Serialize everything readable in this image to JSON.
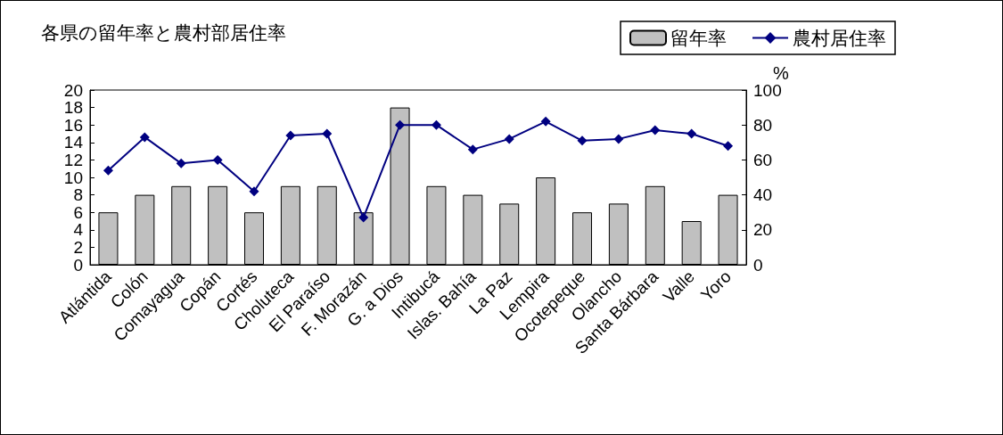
{
  "chart_data": {
    "type": "bar",
    "title": "各県の留年率と農村部居住率",
    "y2label": "%",
    "categories": [
      "Atlántida",
      "Colón",
      "Comayagua",
      "Copán",
      "Cortés",
      "Choluteca",
      "El Paraíso",
      "F. Morazán",
      "G. a Dios",
      "Intibucá",
      "Islas. Bahía",
      "La Paz",
      "Lempira",
      "Ocotepeque",
      "Olancho",
      "Santa Bárbara",
      "Valle",
      "Yoro"
    ],
    "series": [
      {
        "name": "留年率",
        "color": "#c0c0c0",
        "values": [
          6,
          8,
          9,
          9,
          6,
          9,
          9,
          6,
          18,
          9,
          8,
          7,
          10,
          6,
          7,
          9,
          5,
          8
        ]
      },
      {
        "name": "農村居住率",
        "type": "line",
        "axis": "y2",
        "color": "#000080",
        "marker": "diamond",
        "line_style": "solid",
        "values": [
          54,
          73,
          58,
          60,
          42,
          74,
          75,
          27,
          80,
          80,
          66,
          72,
          82,
          71,
          72,
          77,
          75,
          68
        ]
      }
    ],
    "ylim": [
      0,
      20
    ],
    "yticks": [
      0,
      2,
      4,
      6,
      8,
      10,
      12,
      14,
      16,
      18,
      20
    ],
    "y2lim": [
      0,
      100
    ],
    "y2ticks": [
      0,
      20,
      40,
      60,
      80,
      100
    ],
    "grid": false,
    "legend": "top right"
  }
}
